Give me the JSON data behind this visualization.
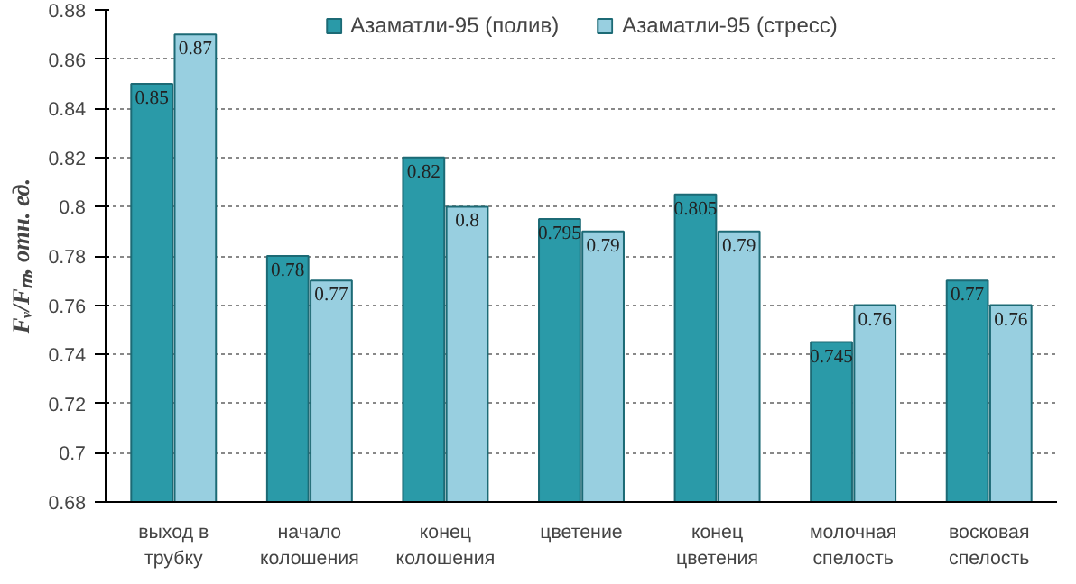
{
  "chart_data": {
    "type": "bar",
    "ylabel": "Fᵥ/Fₘ, отн. ед.",
    "categories": [
      "выход в трубку",
      "начало колошения",
      "конец колошения",
      "цветение",
      "конец цветения",
      "молочная спелость",
      "восковая спелость"
    ],
    "series": [
      {
        "name": "Азаматли-95 (полив)",
        "color": "#2a9aa8",
        "values": [
          0.85,
          0.78,
          0.82,
          0.795,
          0.805,
          0.745,
          0.77
        ]
      },
      {
        "name": "Азаматли-95 (стресс)",
        "color": "#98cfe0",
        "values": [
          0.87,
          0.77,
          0.8,
          0.79,
          0.79,
          0.76,
          0.76
        ]
      }
    ],
    "ylim": [
      0.68,
      0.88
    ],
    "yticks": [
      0.68,
      0.7,
      0.72,
      0.74,
      0.76,
      0.78,
      0.8,
      0.82,
      0.84,
      0.86,
      0.88
    ],
    "grid": "y",
    "legend": "top",
    "data_labels": true
  }
}
